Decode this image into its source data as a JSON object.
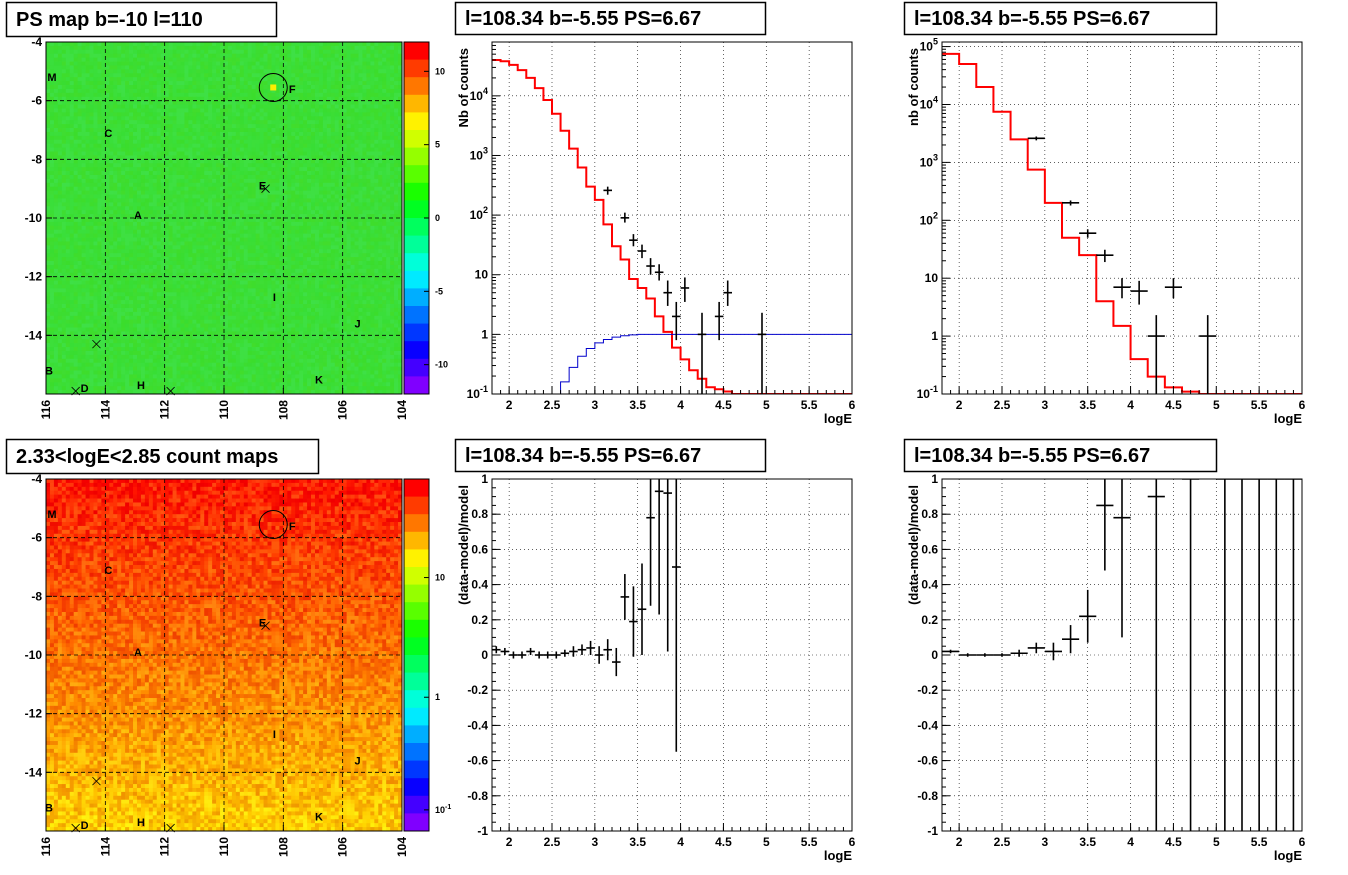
{
  "panels": [
    {
      "id": "p1",
      "title": "PS map b=-10 l=110"
    },
    {
      "id": "p2",
      "title": "l=108.34 b=-5.55 PS=6.67"
    },
    {
      "id": "p3",
      "title": "l=108.34 b=-5.55 PS=6.67"
    },
    {
      "id": "p4",
      "title": "2.33<logE<2.85 count maps"
    },
    {
      "id": "p5",
      "title": "l=108.34 b=-5.55 PS=6.67"
    },
    {
      "id": "p6",
      "title": "l=108.34 b=-5.55 PS=6.67"
    }
  ],
  "colors": {
    "model": "#ff0000",
    "background": "#0000cc",
    "data": "#000000",
    "tsmap_bg": "#33e633"
  },
  "chart_data": [
    {
      "id": "p1",
      "type": "heatmap",
      "title": "PS map b=-10 l=110",
      "xlabel": "",
      "ylabel": "",
      "xlim": [
        116,
        104
      ],
      "ylim": [
        -16,
        -4
      ],
      "xticks": [
        "116",
        "114",
        "112",
        "110",
        "108",
        "106",
        "104"
      ],
      "yticks": [
        "-4",
        "-6",
        "-8",
        "-10",
        "-12",
        "-14"
      ],
      "colorbar": {
        "ticks": [
          "10",
          "5",
          "0",
          "-5",
          "-10"
        ],
        "range": [
          -12,
          12
        ]
      },
      "sources": [
        {
          "name": "M",
          "l": 115.8,
          "b": -5.2
        },
        {
          "name": "F",
          "l": 107.7,
          "b": -5.6
        },
        {
          "name": "C",
          "l": 113.9,
          "b": -7.1
        },
        {
          "name": "E",
          "l": 108.7,
          "b": -8.9
        },
        {
          "name": "A",
          "l": 112.9,
          "b": -9.9
        },
        {
          "name": "I",
          "l": 108.3,
          "b": -12.7
        },
        {
          "name": "J",
          "l": 105.5,
          "b": -13.6
        },
        {
          "name": "B",
          "l": 115.9,
          "b": -15.2
        },
        {
          "name": "K",
          "l": 106.8,
          "b": -15.5
        },
        {
          "name": "D",
          "l": 114.7,
          "b": -15.8
        },
        {
          "name": "H",
          "l": 112.8,
          "b": -15.7
        }
      ],
      "markers": [
        {
          "l": 108.6,
          "b": -9.0
        },
        {
          "l": 114.3,
          "b": -14.3
        },
        {
          "l": 115.0,
          "b": -15.9
        },
        {
          "l": 111.8,
          "b": -15.9
        }
      ],
      "circle": {
        "l": 108.34,
        "b": -5.55
      }
    },
    {
      "id": "p2",
      "type": "line",
      "log_y": true,
      "title": "l=108.34 b=-5.55 PS=6.67",
      "xlabel": "logE",
      "ylabel": "Nb of counts",
      "xlim": [
        1.8,
        6
      ],
      "ylim": [
        0.1,
        80000
      ],
      "xticks": [
        "2",
        "2.5",
        "3",
        "3.5",
        "4",
        "4.5",
        "5",
        "5.5",
        "6"
      ],
      "yticks": [
        "10^-1",
        "1",
        "10",
        "10^2",
        "10^3",
        "10^4"
      ],
      "grid": true,
      "series": [
        {
          "role": "model",
          "style": "step",
          "bin_width": 0.1,
          "x": [
            1.8,
            1.9,
            2.0,
            2.1,
            2.2,
            2.3,
            2.4,
            2.5,
            2.6,
            2.7,
            2.8,
            2.9,
            3.0,
            3.1,
            3.2,
            3.3,
            3.4,
            3.5,
            3.6,
            3.7,
            3.8,
            3.9,
            4.0,
            4.1,
            4.2,
            4.3,
            4.4,
            4.5,
            4.6,
            4.7,
            4.8,
            4.9,
            5.0,
            5.1,
            5.2,
            5.3,
            5.4,
            5.5,
            5.6,
            5.7,
            5.8,
            5.9
          ],
          "y": [
            40000,
            38000,
            33000,
            27000,
            20000,
            13500,
            8500,
            5000,
            2600,
            1300,
            630,
            300,
            180,
            70,
            30,
            18,
            8.5,
            6,
            4,
            2,
            1.1,
            0.6,
            0.38,
            0.25,
            0.18,
            0.13,
            0.12,
            0.11,
            0.1,
            0.1,
            0.1,
            0.1,
            0.1,
            0.1,
            0.1,
            0.1,
            0.1,
            0.1,
            0.1,
            0.1,
            0.1,
            0.1
          ]
        },
        {
          "role": "background",
          "style": "step",
          "bin_width": 0.1,
          "x": [
            1.8,
            1.9,
            2.0,
            2.1,
            2.2,
            2.3,
            2.4,
            2.5,
            2.6,
            2.7,
            2.8,
            2.9,
            3.0,
            3.1,
            3.2,
            3.3,
            3.4,
            3.5,
            3.6,
            3.7,
            3.8,
            3.9,
            4.0,
            4.1,
            4.2,
            4.3,
            4.4,
            4.5,
            4.6,
            4.7,
            4.8,
            4.9,
            5.0,
            5.1,
            5.2,
            5.3,
            5.4,
            5.5,
            5.6,
            5.7,
            5.8,
            5.9
          ],
          "y": [
            0.08,
            0.08,
            0.08,
            0.08,
            0.08,
            0.08,
            0.08,
            0.1,
            0.16,
            0.28,
            0.43,
            0.58,
            0.72,
            0.82,
            0.9,
            0.95,
            0.98,
            1.0,
            1.0,
            1.0,
            1.0,
            1.0,
            1.0,
            1.0,
            1.0,
            1.0,
            1.0,
            1.0,
            1.0,
            1.0,
            1.0,
            1.0,
            1.0,
            1.0,
            1.0,
            1.0,
            1.0,
            1.0,
            1.0,
            1.0,
            1.0,
            1.0
          ]
        },
        {
          "role": "data",
          "style": "errorbar",
          "points": [
            {
              "x": 3.15,
              "y": 260,
              "xe": 0.05,
              "lo": 220,
              "hi": 300
            },
            {
              "x": 3.35,
              "y": 90,
              "xe": 0.05,
              "lo": 75,
              "hi": 110
            },
            {
              "x": 3.45,
              "y": 38,
              "xe": 0.05,
              "lo": 30,
              "hi": 48
            },
            {
              "x": 3.55,
              "y": 25,
              "xe": 0.05,
              "lo": 19,
              "hi": 32
            },
            {
              "x": 3.65,
              "y": 14,
              "xe": 0.05,
              "lo": 10,
              "hi": 19
            },
            {
              "x": 3.75,
              "y": 11,
              "xe": 0.05,
              "lo": 8,
              "hi": 15
            },
            {
              "x": 3.85,
              "y": 5,
              "xe": 0.05,
              "lo": 3,
              "hi": 8
            },
            {
              "x": 3.95,
              "y": 2,
              "xe": 0.05,
              "lo": 0.8,
              "hi": 3.5
            },
            {
              "x": 4.05,
              "y": 6,
              "xe": 0.05,
              "lo": 3.5,
              "hi": 9
            },
            {
              "x": 4.25,
              "y": 1,
              "xe": 0.05,
              "lo": 0.1,
              "hi": 2.3
            },
            {
              "x": 4.45,
              "y": 2,
              "xe": 0.05,
              "lo": 0.8,
              "hi": 3.5
            },
            {
              "x": 4.55,
              "y": 5,
              "xe": 0.05,
              "lo": 3,
              "hi": 8
            },
            {
              "x": 4.95,
              "y": 1,
              "xe": 0.05,
              "lo": 0.1,
              "hi": 2.3
            }
          ]
        }
      ]
    },
    {
      "id": "p3",
      "type": "line",
      "log_y": true,
      "title": "l=108.34 b=-5.55 PS=6.67",
      "xlabel": "logE",
      "ylabel": "nb of counts",
      "xlim": [
        1.8,
        6
      ],
      "ylim": [
        0.1,
        120000
      ],
      "xticks": [
        "2",
        "2.5",
        "3",
        "3.5",
        "4",
        "4.5",
        "5",
        "5.5",
        "6"
      ],
      "yticks": [
        "10^-1",
        "1",
        "10",
        "10^2",
        "10^3",
        "10^4",
        "10^5"
      ],
      "grid": true,
      "series": [
        {
          "role": "model",
          "style": "step",
          "bin_width": 0.2,
          "x": [
            1.8,
            2.0,
            2.2,
            2.4,
            2.6,
            2.8,
            3.0,
            3.2,
            3.4,
            3.6,
            3.8,
            4.0,
            4.2,
            4.4,
            4.6,
            4.8,
            5.0,
            5.2,
            5.4,
            5.6,
            5.8
          ],
          "y": [
            75000,
            50000,
            20000,
            7500,
            2500,
            750,
            200,
            50,
            25,
            4,
            1.5,
            0.4,
            0.2,
            0.13,
            0.11,
            0.1,
            0.1,
            0.1,
            0.1,
            0.1,
            0.1
          ]
        },
        {
          "role": "data",
          "style": "errorbar",
          "points": [
            {
              "x": 2.9,
              "y": 2600,
              "xe": 0.1,
              "lo": 2400,
              "hi": 2800
            },
            {
              "x": 3.3,
              "y": 200,
              "xe": 0.1,
              "lo": 180,
              "hi": 220
            },
            {
              "x": 3.5,
              "y": 60,
              "xe": 0.1,
              "lo": 50,
              "hi": 70
            },
            {
              "x": 3.7,
              "y": 25,
              "xe": 0.1,
              "lo": 19,
              "hi": 31
            },
            {
              "x": 3.9,
              "y": 7,
              "xe": 0.1,
              "lo": 4.5,
              "hi": 10
            },
            {
              "x": 4.1,
              "y": 6,
              "xe": 0.1,
              "lo": 3.5,
              "hi": 9
            },
            {
              "x": 4.3,
              "y": 1,
              "xe": 0.1,
              "lo": 0.1,
              "hi": 2.3
            },
            {
              "x": 4.5,
              "y": 7,
              "xe": 0.1,
              "lo": 4.5,
              "hi": 10
            },
            {
              "x": 4.9,
              "y": 1,
              "xe": 0.1,
              "lo": 0.1,
              "hi": 2.3
            }
          ]
        }
      ]
    },
    {
      "id": "p4",
      "type": "heatmap",
      "title": "2.33<logE<2.85 count maps",
      "xlabel": "",
      "ylabel": "",
      "xlim": [
        116,
        104
      ],
      "ylim": [
        -16,
        -4
      ],
      "xticks": [
        "116",
        "114",
        "112",
        "110",
        "108",
        "106",
        "104"
      ],
      "yticks": [
        "-4",
        "-6",
        "-8",
        "-10",
        "-12",
        "-14"
      ],
      "colorbar": {
        "ticks": [
          "10",
          "1",
          "10^-1"
        ],
        "log": true
      },
      "sources": [
        {
          "name": "M",
          "l": 115.8,
          "b": -5.2
        },
        {
          "name": "F",
          "l": 107.7,
          "b": -5.6
        },
        {
          "name": "C",
          "l": 113.9,
          "b": -7.1
        },
        {
          "name": "E",
          "l": 108.7,
          "b": -8.9
        },
        {
          "name": "A",
          "l": 112.9,
          "b": -9.9
        },
        {
          "name": "I",
          "l": 108.3,
          "b": -12.7
        },
        {
          "name": "J",
          "l": 105.5,
          "b": -13.6
        },
        {
          "name": "B",
          "l": 115.9,
          "b": -15.2
        },
        {
          "name": "K",
          "l": 106.8,
          "b": -15.5
        },
        {
          "name": "D",
          "l": 114.7,
          "b": -15.8
        },
        {
          "name": "H",
          "l": 112.8,
          "b": -15.7
        }
      ],
      "markers": [
        {
          "l": 108.6,
          "b": -9.0
        },
        {
          "l": 114.3,
          "b": -14.3
        },
        {
          "l": 115.0,
          "b": -15.9
        },
        {
          "l": 111.8,
          "b": -15.9
        }
      ],
      "circle": {
        "l": 108.34,
        "b": -5.55
      }
    },
    {
      "id": "p5",
      "type": "scatter",
      "title": "l=108.34 b=-5.55 PS=6.67",
      "xlabel": "logE",
      "ylabel": "(data-model)/model",
      "xlim": [
        1.8,
        6
      ],
      "ylim": [
        -1,
        1
      ],
      "xticks": [
        "2",
        "2.5",
        "3",
        "3.5",
        "4",
        "4.5",
        "5",
        "5.5",
        "6"
      ],
      "yticks": [
        "-1",
        "-0.8",
        "-0.6",
        "-0.4",
        "-0.2",
        "0",
        "0.2",
        "0.4",
        "0.6",
        "0.8",
        "1"
      ],
      "grid": true,
      "points": [
        {
          "x": 1.85,
          "y": 0.03,
          "xe": 0.05,
          "ye": 0.02
        },
        {
          "x": 1.95,
          "y": 0.02,
          "xe": 0.05,
          "ye": 0.02
        },
        {
          "x": 2.05,
          "y": 0.0,
          "xe": 0.05,
          "ye": 0.02
        },
        {
          "x": 2.15,
          "y": 0.0,
          "xe": 0.05,
          "ye": 0.02
        },
        {
          "x": 2.25,
          "y": 0.02,
          "xe": 0.05,
          "ye": 0.02
        },
        {
          "x": 2.35,
          "y": 0.0,
          "xe": 0.05,
          "ye": 0.02
        },
        {
          "x": 2.45,
          "y": 0.0,
          "xe": 0.05,
          "ye": 0.02
        },
        {
          "x": 2.55,
          "y": 0.0,
          "xe": 0.05,
          "ye": 0.02
        },
        {
          "x": 2.65,
          "y": 0.01,
          "xe": 0.05,
          "ye": 0.02
        },
        {
          "x": 2.75,
          "y": 0.02,
          "xe": 0.05,
          "ye": 0.03
        },
        {
          "x": 2.85,
          "y": 0.03,
          "xe": 0.05,
          "ye": 0.03
        },
        {
          "x": 2.95,
          "y": 0.04,
          "xe": 0.05,
          "ye": 0.04
        },
        {
          "x": 3.05,
          "y": 0.0,
          "xe": 0.05,
          "ye": 0.05
        },
        {
          "x": 3.15,
          "y": 0.03,
          "xe": 0.05,
          "ye": 0.06
        },
        {
          "x": 3.25,
          "y": -0.04,
          "xe": 0.05,
          "ye": 0.08
        },
        {
          "x": 3.35,
          "y": 0.33,
          "xe": 0.05,
          "ye": 0.13
        },
        {
          "x": 3.45,
          "y": 0.19,
          "xe": 0.05,
          "ye": 0.2
        },
        {
          "x": 3.55,
          "y": 0.26,
          "xe": 0.05,
          "ye": 0.26
        },
        {
          "x": 3.65,
          "y": 0.78,
          "xe": 0.05,
          "ye": 0.5
        },
        {
          "x": 3.75,
          "y": 0.93,
          "xe": 0.05,
          "ye": 0.7
        },
        {
          "x": 3.85,
          "y": 0.92,
          "xe": 0.05,
          "ye": 0.9
        },
        {
          "x": 3.95,
          "y": 0.5,
          "xe": 0.05,
          "ye": 1.05
        }
      ]
    },
    {
      "id": "p6",
      "type": "scatter",
      "title": "l=108.34 b=-5.55 PS=6.67",
      "xlabel": "logE",
      "ylabel": "(data-model)/model",
      "xlim": [
        1.8,
        6
      ],
      "ylim": [
        -1,
        1
      ],
      "xticks": [
        "2",
        "2.5",
        "3",
        "3.5",
        "4",
        "4.5",
        "5",
        "5.5",
        "6"
      ],
      "yticks": [
        "-1",
        "-0.8",
        "-0.6",
        "-0.4",
        "-0.2",
        "0",
        "0.2",
        "0.4",
        "0.6",
        "0.8",
        "1"
      ],
      "grid": true,
      "points": [
        {
          "x": 1.9,
          "y": 0.02,
          "xe": 0.1,
          "ye": 0.01
        },
        {
          "x": 2.1,
          "y": 0.0,
          "xe": 0.1,
          "ye": 0.01
        },
        {
          "x": 2.3,
          "y": 0.0,
          "xe": 0.1,
          "ye": 0.01
        },
        {
          "x": 2.5,
          "y": 0.0,
          "xe": 0.1,
          "ye": 0.01
        },
        {
          "x": 2.7,
          "y": 0.01,
          "xe": 0.1,
          "ye": 0.02
        },
        {
          "x": 2.9,
          "y": 0.04,
          "xe": 0.1,
          "ye": 0.03
        },
        {
          "x": 3.1,
          "y": 0.02,
          "xe": 0.1,
          "ye": 0.05
        },
        {
          "x": 3.3,
          "y": 0.09,
          "xe": 0.1,
          "ye": 0.08
        },
        {
          "x": 3.5,
          "y": 0.22,
          "xe": 0.1,
          "ye": 0.15
        },
        {
          "x": 3.7,
          "y": 0.85,
          "xe": 0.1,
          "ye": 0.37
        },
        {
          "x": 3.9,
          "y": 0.78,
          "xe": 0.1,
          "ye": 0.68
        },
        {
          "x": 4.3,
          "y": 0.9,
          "xe": 0.1,
          "ye": 2.0
        },
        {
          "x": 4.7,
          "y": 1.0,
          "xe": 0.1,
          "ye": 2.0
        },
        {
          "x": 5.1,
          "y": 1.0,
          "xe": 0.1,
          "ye": 2.0
        },
        {
          "x": 5.3,
          "y": 1.0,
          "xe": 0.1,
          "ye": 2.0
        },
        {
          "x": 5.5,
          "y": 1.0,
          "xe": 0.1,
          "ye": 2.0
        },
        {
          "x": 5.7,
          "y": 1.0,
          "xe": 0.1,
          "ye": 2.0
        },
        {
          "x": 5.9,
          "y": 1.0,
          "xe": 0.1,
          "ye": 2.0
        }
      ]
    }
  ]
}
